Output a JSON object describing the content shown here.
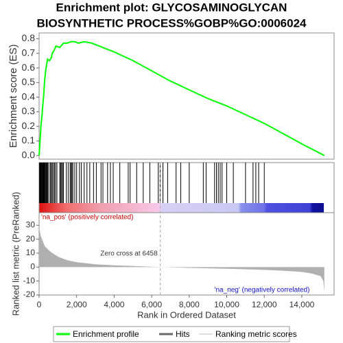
{
  "chart_data": [
    {
      "type": "line",
      "title": "Enrichment plot: GLYCOSAMINOGLYCAN",
      "subtitle": "BIOSYNTHETIC PROCESS%GOBP%GO:0006024",
      "ylabel": "Enrichment score (ES)",
      "x": [
        0,
        50,
        100,
        150,
        200,
        250,
        300,
        350,
        400,
        450,
        550,
        650,
        700,
        800,
        900,
        1100,
        1300,
        1500,
        1700,
        1900,
        2100,
        2400,
        2800,
        3200,
        3600,
        4000,
        5000,
        6000,
        7000,
        8000,
        9000,
        10000,
        11000,
        12000,
        13000,
        14000,
        15200
      ],
      "series": [
        {
          "name": "Enrichment profile",
          "color": "#00ff00",
          "values": [
            0,
            0.1,
            0.2,
            0.27,
            0.35,
            0.42,
            0.52,
            0.58,
            0.62,
            0.66,
            0.65,
            0.67,
            0.7,
            0.72,
            0.75,
            0.74,
            0.77,
            0.77,
            0.78,
            0.78,
            0.77,
            0.78,
            0.77,
            0.75,
            0.73,
            0.71,
            0.65,
            0.58,
            0.51,
            0.45,
            0.39,
            0.34,
            0.28,
            0.22,
            0.15,
            0.08,
            0
          ]
        }
      ],
      "xlim": [
        0,
        15720
      ],
      "ylim": [
        -0.025,
        0.84
      ],
      "yticks": [
        {
          "value": 0,
          "label": "0.0"
        },
        0.1,
        0.2,
        0.3,
        0.4,
        0.5,
        0.6,
        0.7,
        0.8
      ],
      "grid": false
    },
    {
      "type": "hits",
      "series": [
        {
          "name": "Hits",
          "color": "#000000"
        }
      ],
      "x": [
        20,
        50,
        80,
        100,
        130,
        160,
        190,
        220,
        250,
        280,
        310,
        340,
        380,
        420,
        460,
        520,
        600,
        650,
        700,
        760,
        820,
        880,
        950,
        1100,
        1150,
        1200,
        1250,
        1300,
        1450,
        1550,
        1650,
        1700,
        1750,
        1800,
        1900,
        2000,
        2150,
        2250,
        2400,
        2550,
        2700,
        2900,
        3050,
        3300,
        3400,
        3650,
        3800,
        3950,
        4300,
        4750,
        4850,
        5200,
        5550,
        5900,
        6350,
        6450,
        6600,
        6850,
        7300,
        7550,
        8000,
        8750,
        8900,
        9350,
        9450,
        9550,
        9650,
        9750,
        10000,
        10350,
        11000,
        11400,
        11550,
        11700,
        12000
      ],
      "xlim": [
        0,
        15720
      ]
    },
    {
      "type": "area",
      "ylabel": "Ranked list metric (PreRanked)",
      "xlabel": "Rank in Ordered Dataset",
      "annotations": [
        "'na_pos' (positively correlated)",
        "Zero cross at 6458",
        "'na_neg' (negatively correlated)"
      ],
      "zero_cross": 6458,
      "x": [
        0,
        100,
        300,
        600,
        1000,
        1500,
        2000,
        3000,
        4000,
        5000,
        6458,
        8000,
        10000,
        12000,
        13000,
        14000,
        14500,
        15000,
        15150,
        15200
      ],
      "series": [
        {
          "name": "Ranking metric scores",
          "color": "#b0b0b0",
          "values": [
            28,
            22,
            15,
            11,
            7.5,
            5,
            3.5,
            2,
            1.3,
            0.8,
            0,
            -0.6,
            -1.2,
            -2,
            -2.6,
            -3.5,
            -4.5,
            -6.5,
            -10,
            -18
          ]
        }
      ],
      "xlim": [
        0,
        15720
      ],
      "ylim": [
        -20,
        39
      ],
      "xticks": [
        0,
        {
          "value": 2000,
          "label": "2,000"
        },
        {
          "value": 4000,
          "label": "4,000"
        },
        {
          "value": 6000,
          "label": "6,000"
        },
        {
          "value": 8000,
          "label": "8,000"
        },
        {
          "value": 10000,
          "label": "10,000"
        },
        {
          "value": 12000,
          "label": "12,000"
        },
        {
          "value": 14000,
          "label": "14,000"
        }
      ],
      "yticks": [
        -20,
        -10,
        0,
        10,
        20,
        30
      ]
    }
  ]
}
